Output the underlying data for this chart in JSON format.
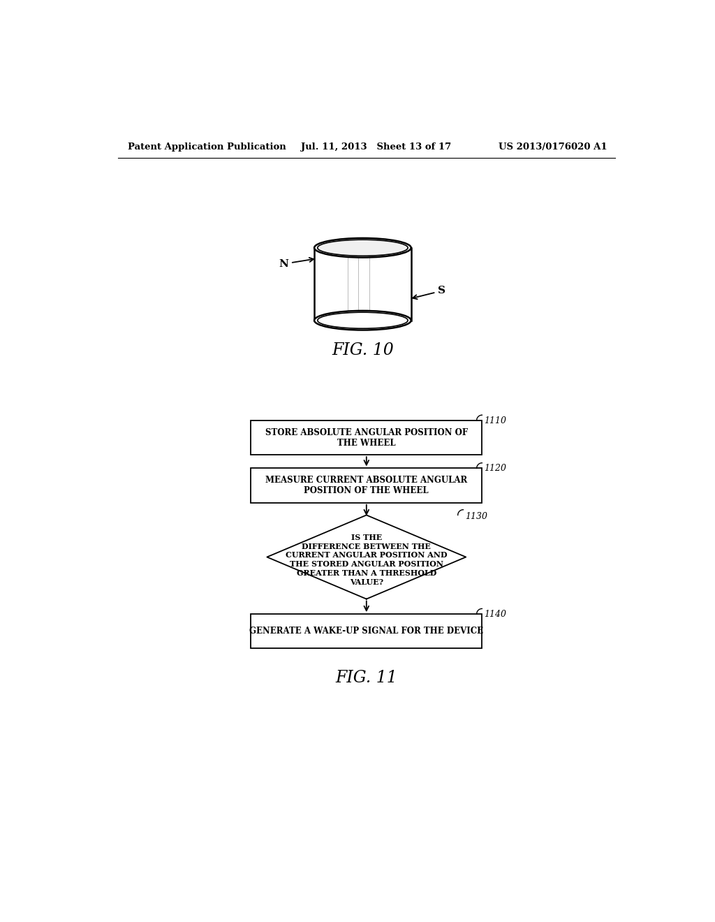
{
  "header_left": "Patent Application Publication",
  "header_mid": "Jul. 11, 2013   Sheet 13 of 17",
  "header_right": "US 2013/0176020 A1",
  "fig10_label": "FIG. 10",
  "fig11_label": "FIG. 11",
  "box1_text": "STORE ABSOLUTE ANGULAR POSITION OF\nTHE WHEEL",
  "box1_label": "1110",
  "box2_text": "MEASURE CURRENT ABSOLUTE ANGULAR\nPOSITION OF THE WHEEL",
  "box2_label": "1120",
  "diamond_text": "IS THE\nDIFFERENCE BETWEEN THE\nCURRENT ANGULAR POSITION AND\nTHE STORED ANGULAR POSITION\nGREATER THAN A THRESHOLD\nVALUE?",
  "diamond_label": "1130",
  "box3_text": "GENERATE A WAKE-UP SIGNAL FOR THE DEVICE",
  "box3_label": "1140",
  "N_label": "N",
  "S_label": "S",
  "background_color": "#ffffff",
  "line_color": "#000000",
  "text_color": "#000000"
}
